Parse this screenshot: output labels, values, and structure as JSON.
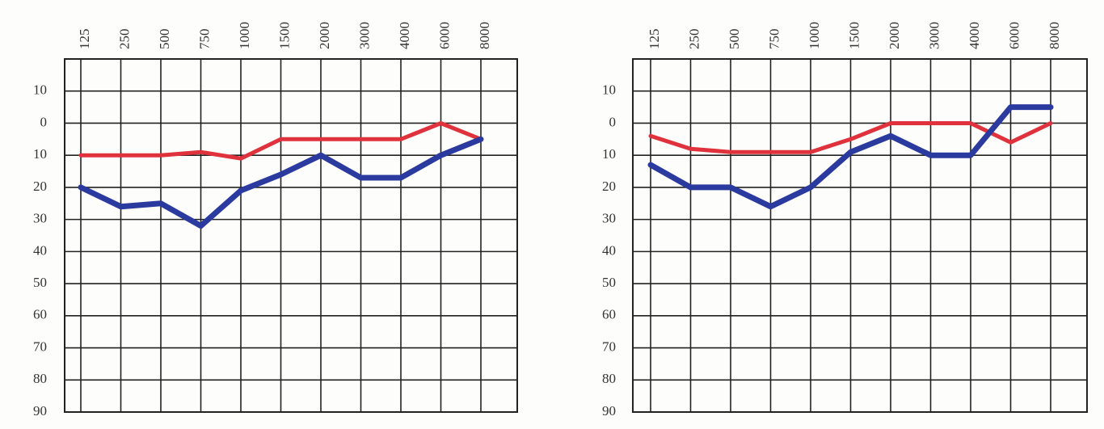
{
  "chart_data": [
    {
      "type": "line",
      "categories": [
        "125",
        "250",
        "500",
        "750",
        "1000",
        "1500",
        "2000",
        "3000",
        "4000",
        "6000",
        "8000"
      ],
      "series": [
        {
          "color": "#e0323c",
          "values": [
            10,
            10,
            10,
            9,
            11,
            5,
            5,
            5,
            5,
            0,
            5
          ]
        },
        {
          "color": "#2a3a9e",
          "values": [
            20,
            26,
            25,
            32,
            21,
            16,
            10,
            17,
            17,
            10,
            5
          ]
        }
      ],
      "ylim": [
        -20,
        90
      ],
      "yticks": [
        {
          "value": -10,
          "label": "10"
        },
        0,
        10,
        20,
        30,
        40,
        50,
        60,
        70,
        80,
        90
      ],
      "y_inverted": true,
      "grid": true
    },
    {
      "type": "line",
      "categories": [
        "125",
        "250",
        "500",
        "750",
        "1000",
        "1500",
        "2000",
        "3000",
        "4000",
        "6000",
        "8000"
      ],
      "series": [
        {
          "color": "#e0323c",
          "values": [
            4,
            8,
            9,
            9,
            9,
            5,
            0,
            0,
            0,
            6,
            0
          ]
        },
        {
          "color": "#2a3a9e",
          "values": [
            13,
            20,
            20,
            26,
            20,
            9,
            4,
            10,
            10,
            -5,
            -5
          ]
        }
      ],
      "ylim": [
        -20,
        90
      ],
      "yticks": [
        {
          "value": -10,
          "label": "10"
        },
        0,
        10,
        20,
        30,
        40,
        50,
        60,
        70,
        80,
        90
      ],
      "y_inverted": true,
      "grid": true
    }
  ]
}
